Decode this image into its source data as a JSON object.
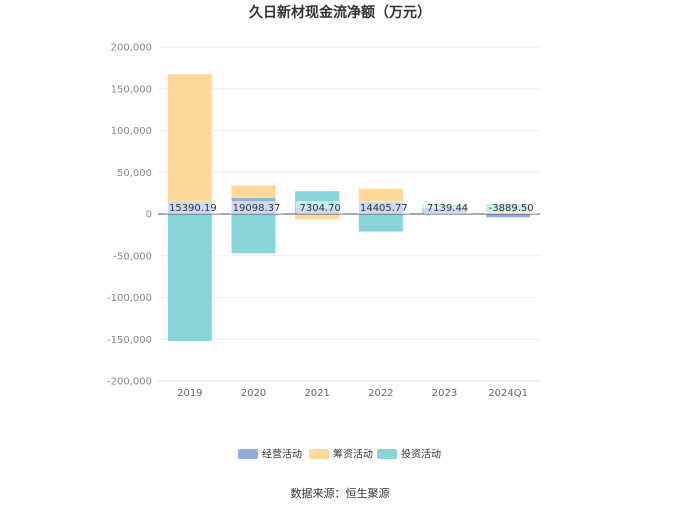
{
  "chart_data": {
    "type": "bar",
    "stacked": true,
    "title": "久日新材现金流净额（万元）",
    "categories": [
      "2019",
      "2020",
      "2021",
      "2022",
      "2023",
      "2024Q1"
    ],
    "series": [
      {
        "name": "经营活动",
        "color": "#8eaee0",
        "values": [
          15390.19,
          19098.37,
          7304.7,
          14405.77,
          7139.44,
          -3889.5
        ]
      },
      {
        "name": "筹资活动",
        "color": "#ffd99a",
        "values": [
          152000,
          15000,
          -6000,
          16000,
          1500,
          2500
        ]
      },
      {
        "name": "投资活动",
        "color": "#87d5d9",
        "values": [
          -152000,
          -47000,
          20000,
          -21000,
          2500,
          9500
        ]
      }
    ],
    "data_labels": [
      "15390.19",
      "19098.37",
      "7304.70",
      "14405.77",
      "7139.44",
      "-3889.50"
    ],
    "ylim": [
      -200000,
      200000
    ],
    "yticks": [
      200000,
      150000,
      100000,
      50000,
      0,
      -50000,
      -100000,
      -150000,
      -200000
    ],
    "ytick_labels": [
      "200,000",
      "150,000",
      "100,000",
      "50,000",
      "0",
      "-50,000",
      "-100,000",
      "-150,000",
      "-200,000"
    ],
    "legend_position": "bottom",
    "grid": true
  },
  "source": "数据来源：恒生聚源"
}
